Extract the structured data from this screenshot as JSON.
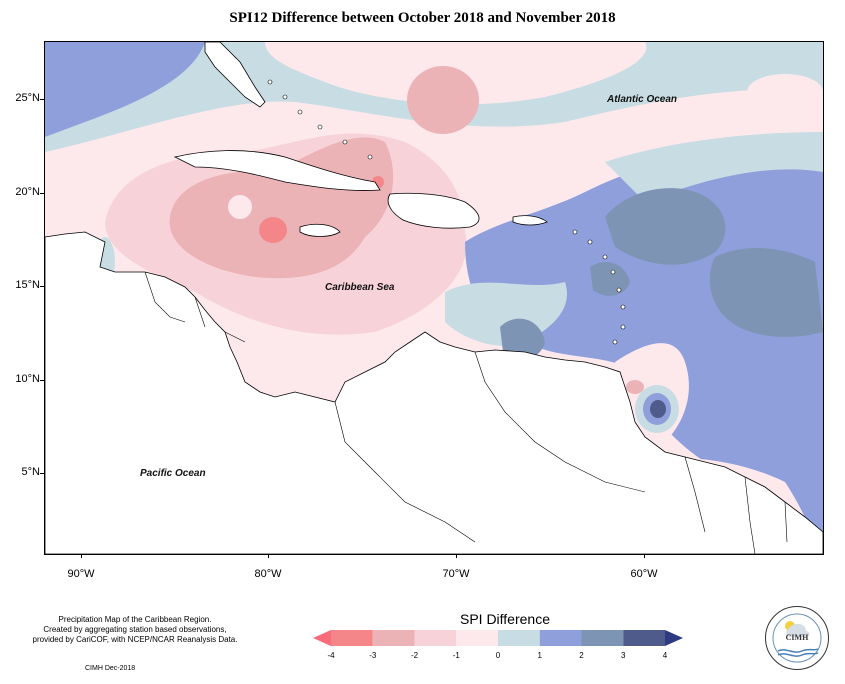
{
  "title": "SPI12 Difference between October 2018 and November 2018",
  "map": {
    "labels": {
      "atlantic": "Atlantic Ocean",
      "caribbean": "Caribbean Sea",
      "pacific": "Pacific Ocean"
    },
    "lat_ticks": [
      "25°N",
      "20°N",
      "15°N",
      "10°N",
      "5°N"
    ],
    "lon_ticks": [
      "90°W",
      "80°W",
      "70°W",
      "60°W"
    ]
  },
  "legend": {
    "title": "SPI Difference",
    "tick_labels": [
      "-4",
      "-3",
      "-2",
      "-1",
      "0",
      "1",
      "2",
      "3",
      "4"
    ],
    "colors": [
      "#f4868a",
      "#ebb3b6",
      "#f7d3d9",
      "#fde9ec",
      "#c8dde3",
      "#8f9fdc",
      "#7e94b5",
      "#4f5b8a"
    ],
    "min_color": "#f76b7a",
    "max_color": "#2e3a80"
  },
  "footer": {
    "lines": [
      "Precipitation Map of the Caribbean Region.",
      "Created by aggregating station based observations,",
      "provided by CariCOF, with NCEP/NCAR Reanalysis Data."
    ],
    "credit": "CIMH Dec-2018"
  },
  "logo": {
    "text": "CIMH"
  }
}
